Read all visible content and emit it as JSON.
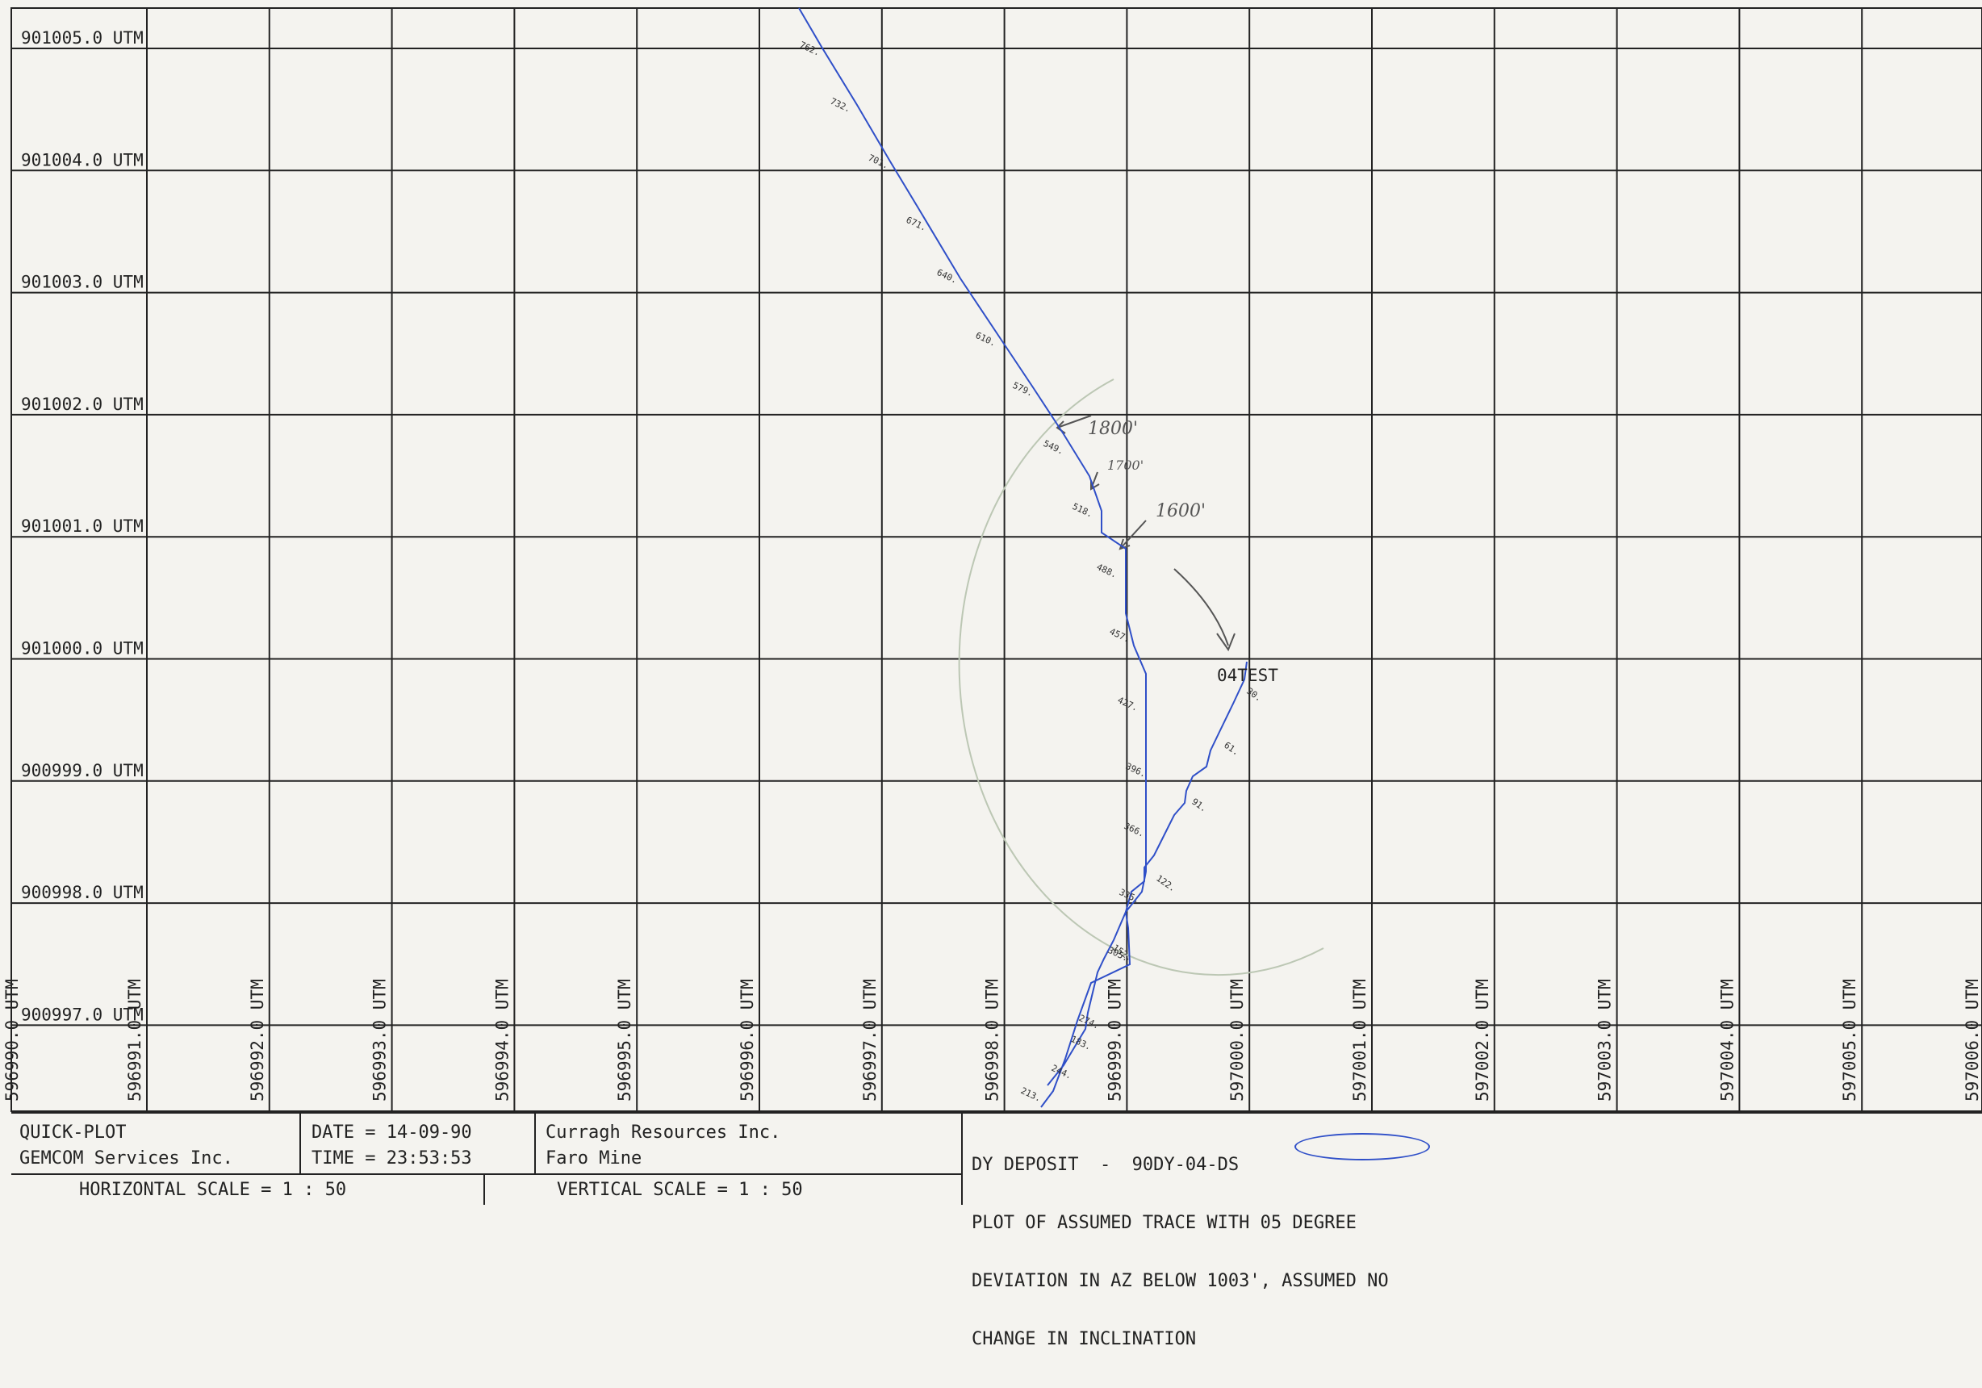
{
  "plot": {
    "northing_labels": [
      "901005.0 UTM",
      "901004.0 UTM",
      "901003.0 UTM",
      "901002.0 UTM",
      "901001.0 UTM",
      "901000.0 UTM",
      "900999.0 UTM",
      "900998.0 UTM",
      "900997.0 UTM"
    ],
    "easting_labels": [
      "596991.0 UTM",
      "596992.0 UTM",
      "596993.0 UTM",
      "596994.0 UTM",
      "596995.0 UTM",
      "596996.0 UTM",
      "596997.0 UTM",
      "596998.0 UTM",
      "596999.0 UTM",
      "597000.0 UTM",
      "597001.0 UTM",
      "597002.0 UTM",
      "597003.0 UTM",
      "597004.0 UTM",
      "597005.0 UTM",
      "597006.0 UTM"
    ],
    "partial_easting_label": "596990.0 UTM",
    "hole_label": "04TEST",
    "trace_color": "#2f4fc8",
    "main_trace_depths": [
      "762.",
      "732.",
      "701.",
      "671.",
      "640.",
      "610.",
      "579.",
      "549.",
      "518.",
      "488.",
      "457.",
      "427.",
      "396.",
      "366.",
      "335.",
      "305.",
      "274.",
      "183.",
      "244.",
      "213."
    ],
    "second_trace_depths": [
      "30.",
      "61.",
      "91.",
      "122.",
      "152."
    ],
    "annotations": [
      "1800'",
      "1700'",
      "1600'"
    ]
  },
  "title_block": {
    "program": "QUICK-PLOT",
    "vendor": "GEMCOM Services Inc.",
    "date": "DATE = 14-09-90",
    "time": "TIME = 23:53:53",
    "company": "Curragh Resources Inc.",
    "site": "Faro Mine",
    "h_scale": "HORIZONTAL SCALE = 1 : 50",
    "v_scale": "VERTICAL SCALE = 1 : 50",
    "notes": [
      "DY DEPOSIT  -  90DY-04-DS",
      "PLOT OF ASSUMED TRACE WITH 05 DEGREE",
      "DEVIATION IN AZ BELOW 1003', ASSUMED NO",
      "CHANGE IN INCLINATION"
    ]
  }
}
